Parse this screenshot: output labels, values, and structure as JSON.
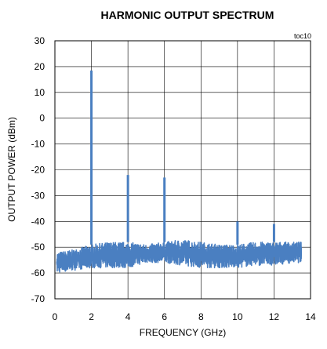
{
  "chart_data": {
    "type": "line",
    "title": "HARMONIC OUTPUT SPECTRUM",
    "annotation": "toc10",
    "xlabel": "FREQUENCY (GHz)",
    "ylabel": "OUTPUT POWER (dBm)",
    "xlim": [
      0,
      14
    ],
    "ylim": [
      -70,
      30
    ],
    "x_ticks": [
      0,
      2,
      4,
      6,
      8,
      10,
      12,
      14
    ],
    "y_ticks": [
      30,
      20,
      10,
      0,
      -10,
      -20,
      -30,
      -40,
      -50,
      -60,
      -70
    ],
    "grid": true,
    "color": "#4a7fc1",
    "noise_floor": {
      "x_range": [
        0.1,
        13.5
      ],
      "envelope_x": [
        0.1,
        1.0,
        2.0,
        3.0,
        4.0,
        5.0,
        6.0,
        7.0,
        8.0,
        9.0,
        10.0,
        11.0,
        12.0,
        13.0,
        13.5
      ],
      "upper": [
        -52,
        -51,
        -49,
        -48,
        -48,
        -49,
        -48,
        -47,
        -48,
        -49,
        -49,
        -48,
        -48,
        -48,
        -48
      ],
      "lower": [
        -60,
        -59,
        -58,
        -58,
        -58,
        -56,
        -56,
        -57,
        -58,
        -58,
        -58,
        -57,
        -57,
        -56,
        -56
      ]
    },
    "peaks": [
      {
        "x": 2.0,
        "y": 18.5
      },
      {
        "x": 4.0,
        "y": -22
      },
      {
        "x": 6.0,
        "y": -23
      },
      {
        "x": 10.0,
        "y": -40
      },
      {
        "x": 12.0,
        "y": -41
      }
    ]
  }
}
